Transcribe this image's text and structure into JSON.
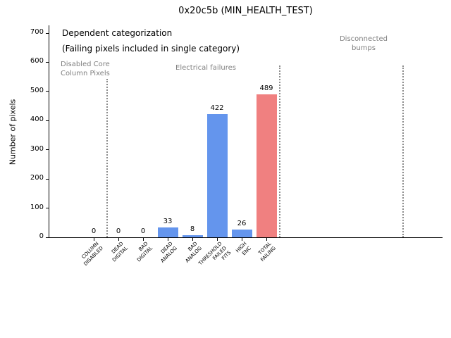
{
  "chart_data": {
    "type": "bar",
    "title": "0x20c5b (MIN_HEALTH_TEST)",
    "ylabel": "Number of pixels",
    "xlabel": "",
    "ylim": [
      0,
      700
    ],
    "yticks": [
      0,
      100,
      200,
      300,
      400,
      500,
      600,
      700
    ],
    "grid": false,
    "legend": "none",
    "categories": [
      "COLUMN\nDISABLED",
      "DEAD\nDIGITAL",
      "BAD\nDIGITAL",
      "DEAD\nANALOG",
      "BAD\nANALOG",
      "THRESHOLD\nFAILED\nFITS",
      "HIGH\nENC",
      "TOTAL\nFAILING"
    ],
    "values": [
      0,
      0,
      0,
      33,
      8,
      422,
      26,
      489
    ],
    "value_labels": [
      "0",
      "0",
      "0",
      "33",
      "8",
      "422",
      "26",
      "489"
    ],
    "bar_colors": [
      "#6495ed",
      "#6495ed",
      "#6495ed",
      "#6495ed",
      "#6495ed",
      "#6495ed",
      "#6495ed",
      "#f08080"
    ],
    "annotations": {
      "dependent_line1": "Dependent categorization",
      "dependent_line2": "(Failing pixels included in single category)",
      "disabled_core": "Disabled Core\nColumn Pixels",
      "electrical": "Electrical failures",
      "disconnected": "Disconnected\nbumps"
    },
    "annotation_colors": {
      "primary": "#000000",
      "section": "#808080"
    },
    "separator_style": "dotted",
    "separator_color": "#8c8c8c",
    "separators": [
      {
        "pos": 0.5
      },
      {
        "pos": 7.5
      },
      {
        "pos": 12.5
      }
    ]
  }
}
